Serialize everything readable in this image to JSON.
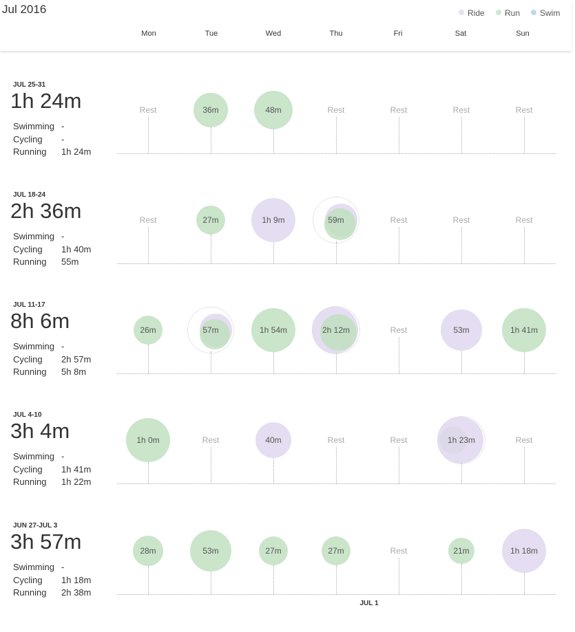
{
  "month_title": "Jul 2016",
  "legend": [
    {
      "label": "Ride",
      "color": "#e6e1f0"
    },
    {
      "label": "Run",
      "color": "#cfe6cf"
    },
    {
      "label": "Swim",
      "color": "#bcd9e6"
    }
  ],
  "colors": {
    "run": "#c1e0c1",
    "ride": "#e0d7ee",
    "swim": "#bcdce8",
    "rest_text": "#aaaaaa"
  },
  "days": [
    "Mon",
    "Tue",
    "Wed",
    "Thu",
    "Fri",
    "Sat",
    "Sun"
  ],
  "stat_labels": {
    "swimming": "Swimming",
    "cycling": "Cycling",
    "running": "Running"
  },
  "rest_label": "Rest",
  "weeks": [
    {
      "label": "JUL 25-31",
      "total": "1h 24m",
      "swimming": "-",
      "cycling": "-",
      "running": "1h 24m",
      "days": [
        {
          "label": "Rest",
          "rest": true
        },
        {
          "label": "36m",
          "activities": [
            {
              "type": "run",
              "minutes": 36
            }
          ]
        },
        {
          "label": "48m",
          "activities": [
            {
              "type": "run",
              "minutes": 48
            }
          ]
        },
        {
          "label": "Rest",
          "rest": true
        },
        {
          "label": "Rest",
          "rest": true
        },
        {
          "label": "Rest",
          "rest": true
        },
        {
          "label": "Rest",
          "rest": true
        }
      ]
    },
    {
      "label": "JUL 18-24",
      "total": "2h 36m",
      "swimming": "-",
      "cycling": "1h 40m",
      "running": "55m",
      "days": [
        {
          "label": "Rest",
          "rest": true
        },
        {
          "label": "27m",
          "activities": [
            {
              "type": "run",
              "minutes": 27
            }
          ]
        },
        {
          "label": "1h 9m",
          "activities": [
            {
              "type": "ride",
              "minutes": 69
            }
          ]
        },
        {
          "label": "59m",
          "activities": [
            {
              "type": "ride",
              "minutes": 31
            },
            {
              "type": "run",
              "minutes": 28
            }
          ]
        },
        {
          "label": "Rest",
          "rest": true
        },
        {
          "label": "Rest",
          "rest": true
        },
        {
          "label": "Rest",
          "rest": true
        }
      ]
    },
    {
      "label": "JUL 11-17",
      "total": "8h 6m",
      "swimming": "-",
      "cycling": "2h 57m",
      "running": "5h 8m",
      "days": [
        {
          "label": "26m",
          "activities": [
            {
              "type": "run",
              "minutes": 26
            }
          ]
        },
        {
          "label": "57m",
          "activities": [
            {
              "type": "ride",
              "minutes": 30
            },
            {
              "type": "run",
              "minutes": 27
            }
          ]
        },
        {
          "label": "1h 54m",
          "activities": [
            {
              "type": "run",
              "minutes": 114
            }
          ]
        },
        {
          "label": "2h 12m",
          "activities": [
            {
              "type": "ride",
              "minutes": 94
            },
            {
              "type": "run",
              "minutes": 38
            }
          ]
        },
        {
          "label": "Rest",
          "rest": true
        },
        {
          "label": "53m",
          "activities": [
            {
              "type": "ride",
              "minutes": 53
            }
          ]
        },
        {
          "label": "1h 41m",
          "activities": [
            {
              "type": "run",
              "minutes": 101
            }
          ]
        }
      ]
    },
    {
      "label": "JUL 4-10",
      "total": "3h 4m",
      "swimming": "-",
      "cycling": "1h 41m",
      "running": "1h 22m",
      "days": [
        {
          "label": "1h 0m",
          "activities": [
            {
              "type": "run",
              "minutes": 60
            }
          ]
        },
        {
          "label": "Rest",
          "rest": true
        },
        {
          "label": "40m",
          "activities": [
            {
              "type": "ride",
              "minutes": 40
            }
          ]
        },
        {
          "label": "Rest",
          "rest": true
        },
        {
          "label": "Rest",
          "rest": true
        },
        {
          "label": "1h 23m",
          "activities": [
            {
              "type": "run",
              "minutes": 22
            },
            {
              "type": "ride",
              "minutes": 61
            }
          ]
        },
        {
          "label": "Rest",
          "rest": true
        }
      ]
    },
    {
      "label": "JUN 27-JUL 3",
      "total": "3h 57m",
      "swimming": "-",
      "cycling": "1h 18m",
      "running": "2h 38m",
      "days": [
        {
          "label": "28m",
          "activities": [
            {
              "type": "run",
              "minutes": 28
            }
          ]
        },
        {
          "label": "53m",
          "activities": [
            {
              "type": "run",
              "minutes": 53
            }
          ]
        },
        {
          "label": "27m",
          "activities": [
            {
              "type": "run",
              "minutes": 27
            }
          ]
        },
        {
          "label": "27m",
          "activities": [
            {
              "type": "run",
              "minutes": 27
            }
          ]
        },
        {
          "label": "Rest",
          "rest": true
        },
        {
          "label": "21m",
          "activities": [
            {
              "type": "run",
              "minutes": 21
            }
          ]
        },
        {
          "label": "1h 18m",
          "activities": [
            {
              "type": "ride",
              "minutes": 78
            }
          ]
        }
      ]
    }
  ],
  "month_marker": "JUL 1"
}
